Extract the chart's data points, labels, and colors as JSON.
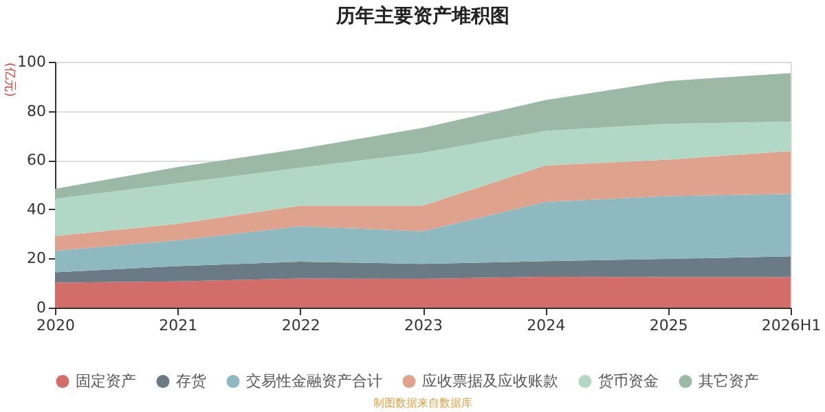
{
  "chart_data": {
    "type": "area",
    "title": "历年主要资产堆积图",
    "ylabel": "(亿元)",
    "stacked": true,
    "categories": [
      "2020",
      "2021",
      "2022",
      "2023",
      "2024",
      "2025",
      "2026H1"
    ],
    "series": [
      {
        "name": "固定资产",
        "color": "#d26d6a",
        "values": [
          10.2,
          10.7,
          11.9,
          11.7,
          12.6,
          12.4,
          12.4
        ]
      },
      {
        "name": "存货",
        "color": "#6b7b86",
        "values": [
          4.2,
          6.2,
          6.8,
          6.1,
          6.3,
          7.4,
          8.5
        ]
      },
      {
        "name": "交易性金融资产合计",
        "color": "#8fb9c0",
        "values": [
          8.7,
          10.5,
          14.4,
          13.3,
          24.1,
          25.6,
          25.4
        ]
      },
      {
        "name": "应收票据及应收账款",
        "color": "#dfa38d",
        "values": [
          6.0,
          6.7,
          8.4,
          10.4,
          14.8,
          14.8,
          17.4
        ]
      },
      {
        "name": "货币资金",
        "color": "#b1d8c7",
        "values": [
          15.2,
          16.5,
          15.4,
          21.5,
          14.1,
          14.6,
          12.0
        ]
      },
      {
        "name": "其它资产",
        "color": "#9bb9a5",
        "values": [
          4.0,
          6.6,
          7.7,
          10.1,
          12.5,
          17.4,
          19.7
        ]
      }
    ],
    "ylim": [
      0,
      100
    ],
    "yticks": [
      0,
      20,
      40,
      60,
      80,
      100
    ],
    "grid": "y",
    "legend": "bottom",
    "annotations": [
      "制图数据来自数据库"
    ]
  }
}
